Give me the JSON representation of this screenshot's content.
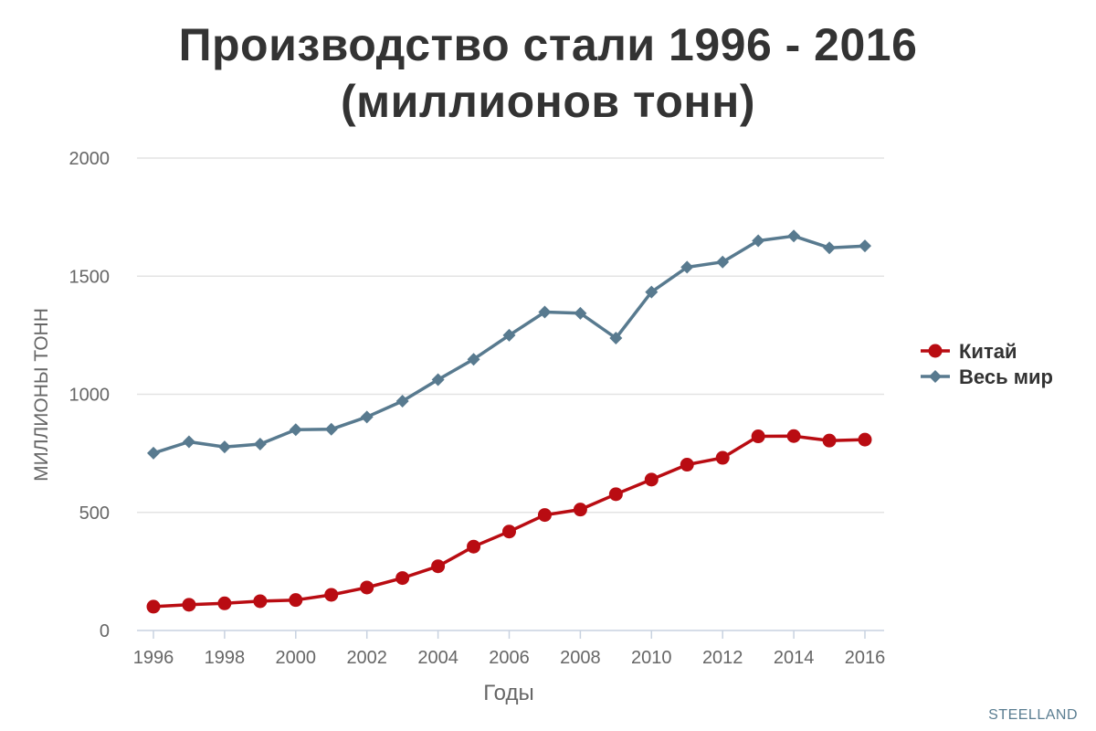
{
  "credit": "STEELLAND",
  "chart_data": {
    "type": "line",
    "title_line1": "Производство стали 1996 - 2016",
    "title_line2": "(миллионов тонн)",
    "xlabel": "Годы",
    "ylabel": "МИЛЛИОНЫ ТОНН",
    "x": [
      1996,
      1997,
      1998,
      1999,
      2000,
      2001,
      2002,
      2003,
      2004,
      2005,
      2006,
      2007,
      2008,
      2009,
      2010,
      2011,
      2012,
      2013,
      2014,
      2015,
      2016
    ],
    "xticks": [
      "1996",
      "1998",
      "2000",
      "2002",
      "2004",
      "2006",
      "2008",
      "2010",
      "2012",
      "2014",
      "2016"
    ],
    "yticks": [
      "0",
      "500",
      "1000",
      "1500",
      "2000"
    ],
    "ylim": [
      0,
      2000
    ],
    "xlim": [
      1996,
      2016
    ],
    "grid": true,
    "legend_position": "right",
    "series": [
      {
        "name": "Китай",
        "color": "#b90c12",
        "marker": "circle",
        "values": [
          101,
          109,
          115,
          124,
          129,
          151,
          182,
          222,
          272,
          355,
          419,
          489,
          512,
          577,
          639,
          702,
          731,
          822,
          823,
          804,
          808
        ]
      },
      {
        "name": "Весь мир",
        "color": "#587a8f",
        "marker": "diamond",
        "values": [
          751,
          799,
          777,
          789,
          850,
          852,
          904,
          971,
          1062,
          1148,
          1250,
          1348,
          1343,
          1238,
          1433,
          1538,
          1560,
          1650,
          1670,
          1620,
          1628
        ]
      }
    ]
  }
}
